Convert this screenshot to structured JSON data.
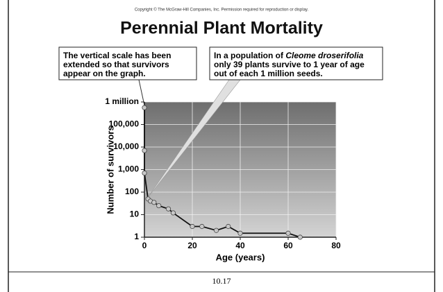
{
  "copyright": "Copyright © The McGraw-Hill Companies, Inc. Permission required for reproduction or display.",
  "chart_data": {
    "type": "line",
    "title": "Perennial Plant Mortality",
    "x_label": "Age (years)",
    "y_label": "Number of survivors",
    "x": [
      0,
      0,
      0,
      1.5,
      2.5,
      4,
      6,
      10,
      12,
      20,
      24,
      30,
      35,
      40,
      60,
      65
    ],
    "values": [
      560000,
      7000,
      700,
      50,
      40,
      35,
      25,
      18,
      12,
      3,
      3,
      2,
      3,
      1.5,
      1.5,
      1
    ],
    "color": "#111111",
    "marker_color": "#c8c8c8",
    "xlim": [
      0,
      80
    ],
    "xticks": [
      0,
      20,
      40,
      60,
      80
    ],
    "ylim": [
      1,
      1000000
    ],
    "log_scale": "y",
    "yticks": [
      1,
      10,
      100,
      {
        "value": 1000,
        "label": "1,000"
      },
      {
        "value": 10000,
        "label": "10,000"
      },
      {
        "value": 100000,
        "label": "100,000"
      },
      {
        "value": 1000000,
        "label": "1 million"
      }
    ],
    "grid": true,
    "annotations": [
      {
        "lines": [
          [
            {
              "text": "The vertical scale has  been"
            }
          ],
          [
            {
              "text": "extended so that survivors"
            }
          ],
          [
            {
              "text": "appear on the graph."
            }
          ]
        ]
      },
      {
        "lines": [
          [
            {
              "text": "In a population of "
            },
            {
              "text": "Cleome droserifolia",
              "italic": true
            }
          ],
          [
            {
              "text": "only 39 plants survive to 1 year of age"
            }
          ],
          [
            {
              "text": "out of each 1 million seeds."
            }
          ]
        ]
      }
    ]
  },
  "footer": "10.17"
}
